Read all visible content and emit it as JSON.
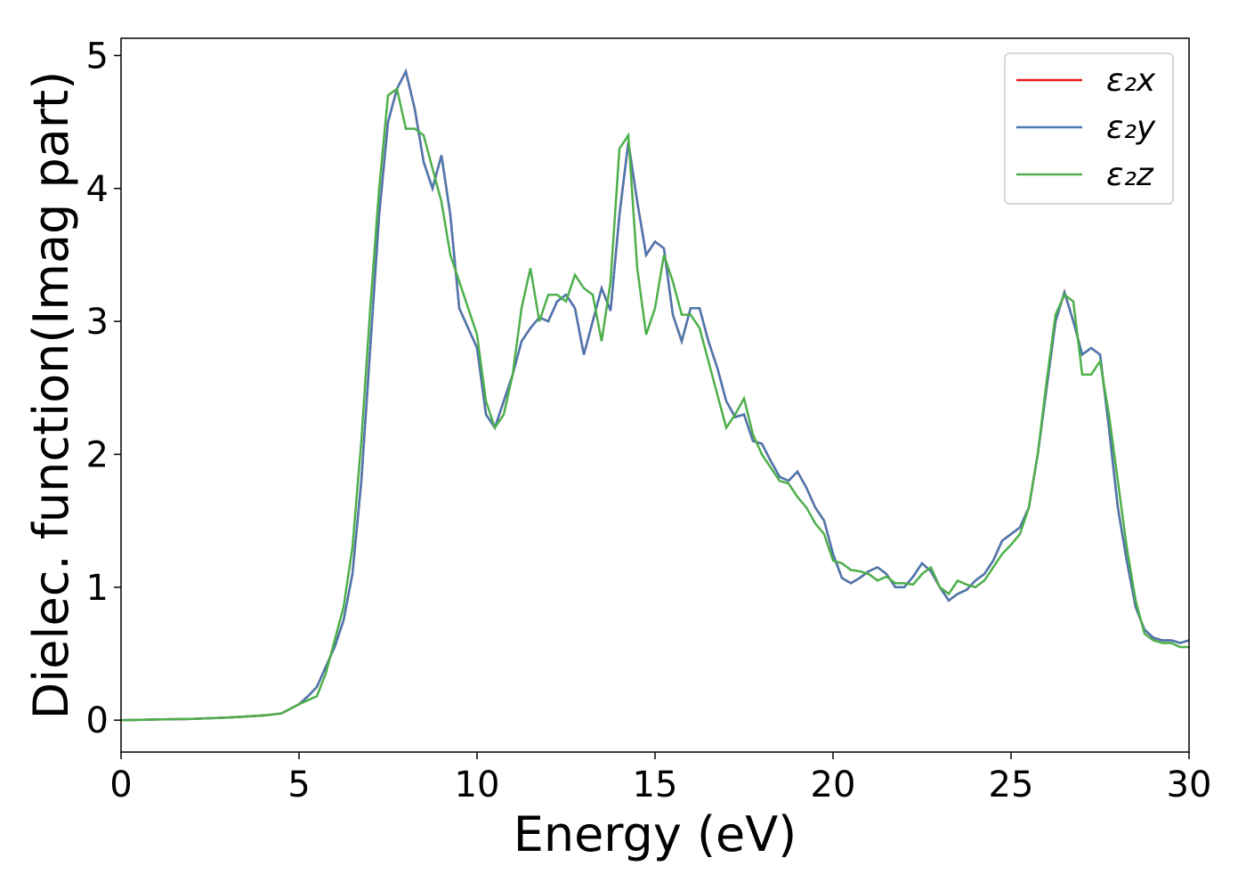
{
  "chart_data": {
    "type": "line",
    "xlabel": "Energy (eV)",
    "ylabel": "Dielec. function(Imag part)",
    "x": [
      0,
      1,
      2,
      3,
      4,
      4.5,
      5,
      5.25,
      5.5,
      5.75,
      6,
      6.25,
      6.5,
      6.75,
      7,
      7.25,
      7.5,
      7.75,
      8,
      8.25,
      8.5,
      8.75,
      9,
      9.25,
      9.5,
      9.75,
      10,
      10.25,
      10.5,
      10.75,
      11,
      11.25,
      11.5,
      11.75,
      12,
      12.25,
      12.5,
      12.75,
      13,
      13.25,
      13.5,
      13.75,
      14,
      14.25,
      14.5,
      14.75,
      15,
      15.25,
      15.5,
      15.75,
      16,
      16.25,
      16.5,
      16.75,
      17,
      17.25,
      17.5,
      17.75,
      18,
      18.25,
      18.5,
      18.75,
      19,
      19.25,
      19.5,
      19.75,
      20,
      20.25,
      20.5,
      20.75,
      21,
      21.25,
      21.5,
      21.75,
      22,
      22.25,
      22.5,
      22.75,
      23,
      23.25,
      23.5,
      23.75,
      24,
      24.25,
      24.5,
      24.75,
      25,
      25.25,
      25.5,
      25.75,
      26,
      26.25,
      26.5,
      26.75,
      27,
      27.25,
      27.5,
      27.75,
      28,
      28.25,
      28.5,
      28.75,
      29,
      29.25,
      29.5,
      29.75,
      30
    ],
    "series": [
      {
        "name": "ε₂x",
        "color": "#e41a1c",
        "values": [
          0,
          0.005,
          0.01,
          0.02,
          0.035,
          0.05,
          0.12,
          0.18,
          0.25,
          0.4,
          0.55,
          0.75,
          1.1,
          1.8,
          2.8,
          3.8,
          4.5,
          4.75,
          4.88,
          4.6,
          4.2,
          4.0,
          4.25,
          3.8,
          3.1,
          2.95,
          2.8,
          2.3,
          2.2,
          2.4,
          2.6,
          2.85,
          2.95,
          3.03,
          3.0,
          3.15,
          3.2,
          3.1,
          2.75,
          3.0,
          3.25,
          3.08,
          3.8,
          4.35,
          3.9,
          3.5,
          3.6,
          3.55,
          3.05,
          2.85,
          3.1,
          3.1,
          2.85,
          2.65,
          2.4,
          2.28,
          2.3,
          2.1,
          2.08,
          1.95,
          1.83,
          1.8,
          1.87,
          1.75,
          1.6,
          1.5,
          1.25,
          1.07,
          1.03,
          1.07,
          1.12,
          1.15,
          1.1,
          1.0,
          1.0,
          1.08,
          1.18,
          1.12,
          1.0,
          0.9,
          0.95,
          0.98,
          1.05,
          1.1,
          1.2,
          1.35,
          1.4,
          1.45,
          1.6,
          2.0,
          2.5,
          3.0,
          3.22,
          3.0,
          2.75,
          2.8,
          2.75,
          2.2,
          1.6,
          1.2,
          0.85,
          0.68,
          0.62,
          0.6,
          0.6,
          0.58,
          0.6
        ]
      },
      {
        "name": "ε₂y",
        "color": "#4a78b0",
        "values": [
          0,
          0.005,
          0.01,
          0.02,
          0.035,
          0.05,
          0.12,
          0.18,
          0.25,
          0.4,
          0.55,
          0.75,
          1.1,
          1.8,
          2.8,
          3.8,
          4.5,
          4.75,
          4.88,
          4.6,
          4.2,
          4.0,
          4.25,
          3.8,
          3.1,
          2.95,
          2.8,
          2.3,
          2.2,
          2.4,
          2.6,
          2.85,
          2.95,
          3.03,
          3.0,
          3.15,
          3.2,
          3.1,
          2.75,
          3.0,
          3.25,
          3.08,
          3.8,
          4.35,
          3.9,
          3.5,
          3.6,
          3.55,
          3.05,
          2.85,
          3.1,
          3.1,
          2.85,
          2.65,
          2.4,
          2.28,
          2.3,
          2.1,
          2.08,
          1.95,
          1.83,
          1.8,
          1.87,
          1.75,
          1.6,
          1.5,
          1.25,
          1.07,
          1.03,
          1.07,
          1.12,
          1.15,
          1.1,
          1.0,
          1.0,
          1.08,
          1.18,
          1.12,
          1.0,
          0.9,
          0.95,
          0.98,
          1.05,
          1.1,
          1.2,
          1.35,
          1.4,
          1.45,
          1.6,
          2.0,
          2.5,
          3.0,
          3.22,
          3.0,
          2.75,
          2.8,
          2.75,
          2.2,
          1.6,
          1.2,
          0.85,
          0.68,
          0.62,
          0.6,
          0.6,
          0.58,
          0.6
        ]
      },
      {
        "name": "ε₂z",
        "color": "#4daf4a",
        "values": [
          0,
          0.005,
          0.01,
          0.02,
          0.035,
          0.05,
          0.12,
          0.15,
          0.18,
          0.35,
          0.6,
          0.85,
          1.3,
          2.1,
          3.1,
          4.0,
          4.7,
          4.75,
          4.45,
          4.45,
          4.4,
          4.15,
          3.9,
          3.5,
          3.3,
          3.1,
          2.9,
          2.4,
          2.2,
          2.3,
          2.6,
          3.1,
          3.4,
          3.0,
          3.2,
          3.2,
          3.15,
          3.35,
          3.25,
          3.2,
          2.85,
          3.3,
          4.3,
          4.4,
          3.4,
          2.9,
          3.1,
          3.5,
          3.3,
          3.05,
          3.05,
          2.95,
          2.7,
          2.45,
          2.2,
          2.3,
          2.42,
          2.15,
          2.0,
          1.9,
          1.8,
          1.78,
          1.68,
          1.6,
          1.48,
          1.4,
          1.2,
          1.18,
          1.13,
          1.12,
          1.1,
          1.05,
          1.08,
          1.03,
          1.03,
          1.02,
          1.1,
          1.15,
          1.0,
          0.95,
          1.05,
          1.02,
          1.0,
          1.05,
          1.15,
          1.25,
          1.32,
          1.4,
          1.6,
          2.0,
          2.55,
          3.05,
          3.2,
          3.15,
          2.6,
          2.6,
          2.7,
          2.3,
          1.8,
          1.3,
          0.9,
          0.65,
          0.6,
          0.58,
          0.58,
          0.55,
          0.55
        ]
      }
    ],
    "xlim": [
      0,
      30
    ],
    "xticks": [
      0,
      5,
      10,
      15,
      20,
      25,
      30
    ],
    "ylim": [
      -0.24,
      5.13
    ],
    "yticks": [
      0,
      1,
      2,
      3,
      4,
      5
    ],
    "legend": "upper right"
  }
}
